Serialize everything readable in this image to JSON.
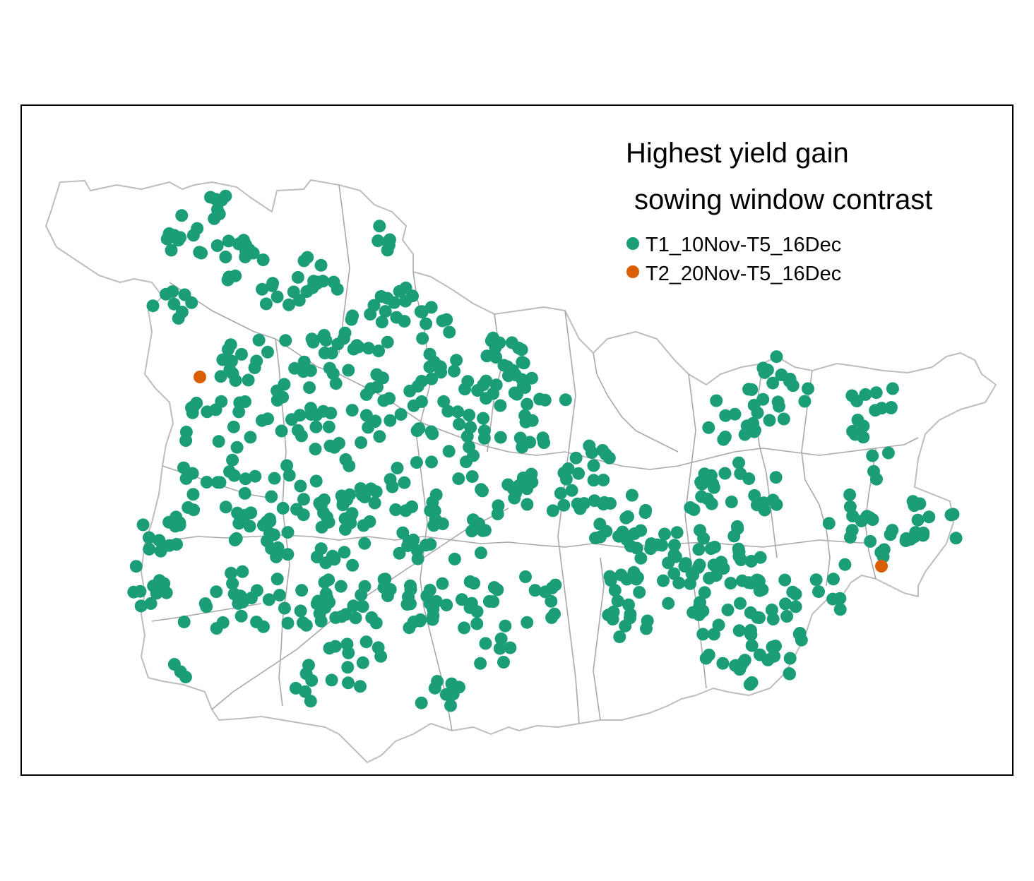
{
  "legend": {
    "title_line1": "Highest yield gain",
    "title_line2": "sowing window contrast",
    "items": [
      {
        "label": "T1_10Nov-T5_16Dec",
        "color": "#1b9e77"
      },
      {
        "label": "T2_20Nov-T5_16Dec",
        "color": "#d95f02"
      }
    ]
  },
  "colors": {
    "frame": "#000000",
    "boundary": "#bdbdbd",
    "series_t1": "#1b9e77",
    "series_t2": "#d95f02"
  }
}
